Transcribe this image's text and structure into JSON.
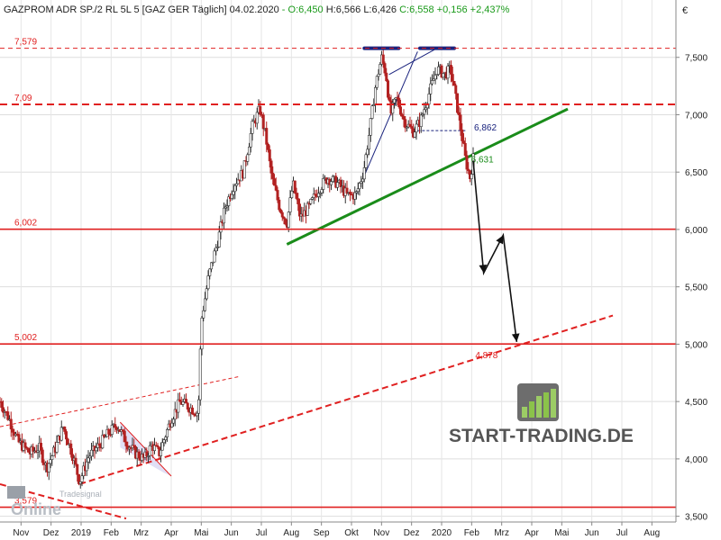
{
  "header": {
    "symbol": "GAZPROM ADR SP./2 RL 5L 5 [GAZ GER",
    "period": "Täglich]",
    "date": "04.02.2020",
    "open": "- O:6,450",
    "high": "H:6,566",
    "low": "L:6,426",
    "change": "C:6,558 +0,156 +2,437%"
  },
  "currency_symbol": "€",
  "watermark": {
    "text": "START-TRADING.DE",
    "logo_small": "Tradesignal",
    "logo_big": "Online"
  },
  "colors": {
    "candle_up": "#ffffff",
    "candle_down": "#b22222",
    "resistance": "#e02020",
    "support_trend": "#1a8c1a",
    "top_marker": "#1a237e",
    "arrow": "#111111",
    "positive": "#1a9a1a"
  },
  "chart_data": {
    "type": "line",
    "title": "GAZPROM ADR SP./2 RL 5L 5 [GAZ GER Täglich]",
    "xlabel": "",
    "ylabel": "",
    "currency": "€",
    "y_ticks": [
      "3,500",
      "4,000",
      "4,500",
      "5,000",
      "5,500",
      "6,000",
      "6,500",
      "7,000",
      "7,500"
    ],
    "y_tick_values": [
      3.5,
      4.0,
      4.5,
      5.0,
      5.5,
      6.0,
      6.5,
      7.0,
      7.5
    ],
    "ylim": [
      3.45,
      8.0
    ],
    "x_ticks": [
      "Nov",
      "Dez",
      "2019",
      "Feb",
      "Mrz",
      "Apr",
      "Mai",
      "Jun",
      "Jul",
      "Aug",
      "Sep",
      "Okt",
      "Nov",
      "Dez",
      "2020",
      "Feb",
      "Mrz",
      "Apr",
      "Mai",
      "Jun",
      "Jul",
      "Aug"
    ],
    "x_tick_index": [
      0,
      1,
      2,
      3,
      4,
      5,
      6,
      7,
      8,
      9,
      10,
      11,
      12,
      13,
      14,
      15,
      16,
      17,
      18,
      19,
      20,
      21
    ],
    "xlim": [
      -0.7,
      21.8
    ],
    "grid": true,
    "levels": [
      {
        "label": "7,579",
        "value": 7.579,
        "style": "dashed-thin"
      },
      {
        "label": "7,09",
        "value": 7.09,
        "style": "dashed-thick"
      },
      {
        "label": "6,002",
        "value": 6.002,
        "style": "solid"
      },
      {
        "label": "5,002",
        "value": 5.002,
        "style": "solid"
      },
      {
        "label": "3,579",
        "value": 3.579,
        "style": "solid"
      }
    ],
    "annotations": [
      {
        "label": "6,862",
        "x": 14.9,
        "y": 6.862
      },
      {
        "label": "6,631",
        "x": 14.8,
        "y": 6.631
      },
      {
        "label": "4,878",
        "x": 15.0,
        "y": 4.878
      }
    ],
    "price_anchors": [
      [
        -0.7,
        4.5
      ],
      [
        -0.4,
        4.35
      ],
      [
        -0.1,
        4.15
      ],
      [
        0.3,
        4.05
      ],
      [
        0.6,
        4.1
      ],
      [
        0.85,
        3.92
      ],
      [
        1.15,
        4.1
      ],
      [
        1.4,
        4.28
      ],
      [
        1.7,
        4.05
      ],
      [
        1.95,
        3.8
      ],
      [
        2.25,
        4.02
      ],
      [
        2.6,
        4.12
      ],
      [
        2.9,
        4.22
      ],
      [
        3.2,
        4.3
      ],
      [
        3.5,
        4.15
      ],
      [
        3.8,
        4.05
      ],
      [
        4.1,
        4.0
      ],
      [
        4.35,
        4.12
      ],
      [
        4.6,
        4.05
      ],
      [
        4.8,
        4.2
      ],
      [
        5.0,
        4.35
      ],
      [
        5.3,
        4.5
      ],
      [
        5.6,
        4.45
      ],
      [
        5.9,
        4.4
      ],
      [
        6.0,
        5.2
      ],
      [
        6.25,
        5.6
      ],
      [
        6.55,
        5.9
      ],
      [
        6.8,
        6.2
      ],
      [
        7.1,
        6.4
      ],
      [
        7.4,
        6.5
      ],
      [
        7.7,
        6.9
      ],
      [
        7.95,
        7.05
      ],
      [
        8.15,
        6.8
      ],
      [
        8.35,
        6.45
      ],
      [
        8.6,
        6.2
      ],
      [
        8.85,
        6.05
      ],
      [
        9.05,
        6.4
      ],
      [
        9.3,
        6.1
      ],
      [
        9.6,
        6.2
      ],
      [
        9.9,
        6.35
      ],
      [
        10.2,
        6.45
      ],
      [
        10.55,
        6.4
      ],
      [
        10.85,
        6.3
      ],
      [
        11.15,
        6.3
      ],
      [
        11.4,
        6.5
      ],
      [
        11.6,
        6.85
      ],
      [
        11.8,
        7.25
      ],
      [
        12.0,
        7.5
      ],
      [
        12.15,
        7.35
      ],
      [
        12.3,
        7.0
      ],
      [
        12.5,
        7.15
      ],
      [
        12.75,
        6.95
      ],
      [
        13.05,
        6.85
      ],
      [
        13.3,
        6.95
      ],
      [
        13.6,
        7.2
      ],
      [
        13.85,
        7.4
      ],
      [
        14.1,
        7.35
      ],
      [
        14.3,
        7.4
      ],
      [
        14.5,
        7.1
      ],
      [
        14.65,
        6.85
      ],
      [
        14.8,
        6.6
      ],
      [
        14.95,
        6.45
      ],
      [
        15.05,
        6.62
      ]
    ],
    "highlight_points": [
      {
        "x": 12.0,
        "y": 7.579
      },
      {
        "x": 13.85,
        "y": 7.579
      },
      {
        "x": 8.85,
        "y": 5.87
      },
      {
        "x": 11.4,
        "y": 6.2
      }
    ],
    "series": [
      {
        "style": "support-uptrend",
        "points": [
          [
            8.85,
            5.87
          ],
          [
            15.0,
            6.6
          ],
          [
            18.2,
            7.05
          ]
        ]
      },
      {
        "style": "long-term-uptrend-dashed",
        "points": [
          [
            1.95,
            3.78
          ],
          [
            15.5,
            4.95
          ],
          [
            19.7,
            5.25
          ]
        ]
      },
      {
        "style": "parallel-channel-dashed-thin",
        "points": [
          [
            -0.7,
            4.28
          ],
          [
            6.5,
            4.68
          ],
          [
            7.3,
            4.72
          ]
        ]
      },
      {
        "style": "downtrend-dashed",
        "points": [
          [
            -0.7,
            3.78
          ],
          [
            3.5,
            3.48
          ]
        ]
      },
      {
        "style": "forecast-arrow",
        "points": [
          [
            15.05,
            6.6
          ],
          [
            15.4,
            5.62
          ],
          [
            16.05,
            5.95
          ],
          [
            16.5,
            5.02
          ]
        ]
      }
    ]
  }
}
